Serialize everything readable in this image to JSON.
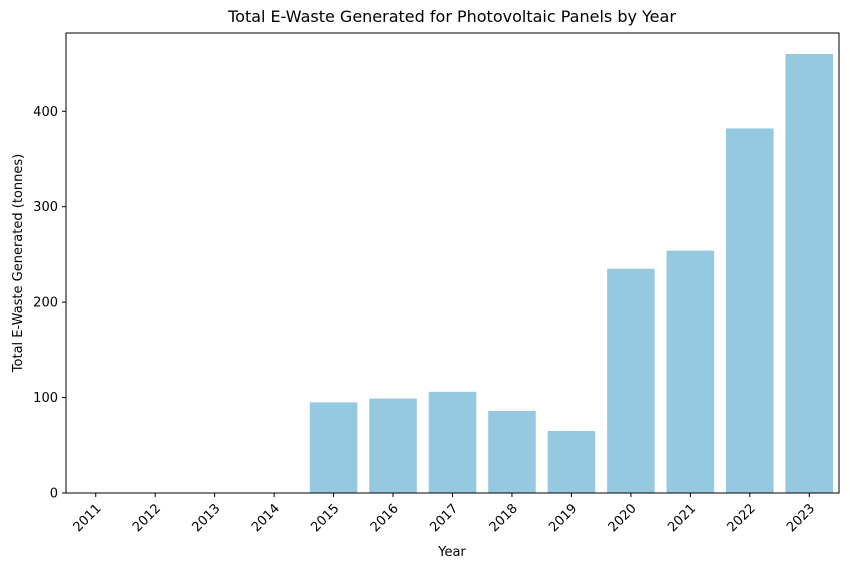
{
  "chart_data": {
    "type": "bar",
    "title": "Total E-Waste Generated for Photovoltaic Panels by Year",
    "xlabel": "Year",
    "ylabel": "Total E-Waste Generated (tonnes)",
    "categories": [
      "2011",
      "2012",
      "2013",
      "2014",
      "2015",
      "2016",
      "2017",
      "2018",
      "2019",
      "2020",
      "2021",
      "2022",
      "2023"
    ],
    "values": [
      0,
      0,
      0,
      0,
      95,
      99,
      106,
      86,
      65,
      235,
      254,
      382,
      460
    ],
    "ylim": [
      0,
      482
    ],
    "yticks": [
      0,
      100,
      200,
      300,
      400
    ],
    "bar_color": "#95c9df",
    "grid": false,
    "legend": "none"
  }
}
